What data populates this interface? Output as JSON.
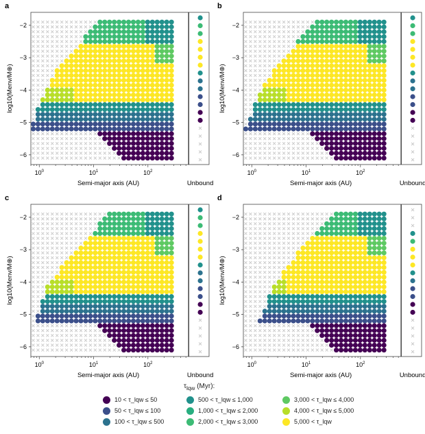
{
  "chart_data": [
    {
      "type": "scatter",
      "panel_label": "a",
      "xlabel": "Semi-major axis (AU)",
      "ylabel": "log10(Menv/M⊕)",
      "x_scale": "log",
      "xlim": [
        0.7,
        500
      ],
      "ylim": [
        -6.3,
        -1.6
      ],
      "x_ticks": [
        "10^0",
        "10^1",
        "10^2"
      ],
      "y_ticks": [
        "-2",
        "-3",
        "-4",
        "-5",
        "-6"
      ],
      "extra_x_label": "Unbound",
      "point_series": "bands",
      "upper_left_a": [
        12,
        5,
        2.0,
        1.2,
        0.8,
        0.6
      ],
      "unbound_colors": [
        "teal",
        "green",
        "green",
        "yellow",
        "yellow",
        "yellow",
        "yellow",
        "teal",
        "blue",
        "blue",
        "indigo",
        "indigo",
        "purple",
        "purple"
      ]
    },
    {
      "type": "scatter",
      "panel_label": "b",
      "xlabel": "Semi-major axis (AU)",
      "ylabel": "log10(Menv/M⊕)",
      "x_scale": "log",
      "xlim": [
        0.7,
        500
      ],
      "ylim": [
        -6.3,
        -1.6
      ],
      "x_ticks": [
        "10^0",
        "10^1",
        "10^2"
      ],
      "y_ticks": [
        "-2",
        "-3",
        "-4",
        "-5",
        "-6"
      ],
      "extra_x_label": "Unbound",
      "point_series": "bands",
      "upper_left_a": [
        14,
        6,
        2.5,
        1.3,
        0.9,
        0.6
      ],
      "unbound_colors": [
        "teal",
        "green",
        "green",
        "yellow",
        "yellow",
        "yellow",
        "yellow",
        "teal",
        "blue",
        "blue",
        "indigo",
        "indigo",
        "purple",
        "purple"
      ]
    },
    {
      "type": "scatter",
      "panel_label": "c",
      "xlabel": "Semi-major axis (AU)",
      "ylabel": "log10(Menv/M⊕)",
      "x_scale": "log",
      "xlim": [
        0.7,
        500
      ],
      "ylim": [
        -6.3,
        -1.6
      ],
      "x_ticks": [
        "10^0",
        "10^1",
        "10^2"
      ],
      "y_ticks": [
        "-2",
        "-3",
        "-4",
        "-5",
        "-6"
      ],
      "extra_x_label": "Unbound",
      "point_series": "bands",
      "upper_left_a": [
        18,
        8,
        3.0,
        1.4,
        1.0,
        0.7
      ],
      "unbound_colors": [
        "teal",
        "green",
        "green",
        "yellow",
        "yellow",
        "yellow",
        "yellow",
        "teal",
        "blue",
        "blue",
        "indigo",
        "indigo",
        "purple",
        "purple"
      ]
    },
    {
      "type": "scatter",
      "panel_label": "d",
      "xlabel": "Semi-major axis (AU)",
      "ylabel": "log10(Menv/M⊕)",
      "x_scale": "log",
      "xlim": [
        0.7,
        500
      ],
      "ylim": [
        -6.3,
        -1.6
      ],
      "x_ticks": [
        "10^0",
        "10^1",
        "10^2"
      ],
      "y_ticks": [
        "-2",
        "-3",
        "-4",
        "-5",
        "-6"
      ],
      "extra_x_label": "Unbound",
      "point_series": "bands",
      "upper_left_a": [
        30,
        12,
        5.0,
        2.5,
        1.6,
        1.0
      ],
      "unbound_colors": [
        "grey",
        "grey",
        "grey",
        "teal",
        "green",
        "yellow",
        "yellow",
        "yellow",
        "teal",
        "blue",
        "indigo",
        "indigo",
        "purple",
        "purple"
      ]
    }
  ],
  "legend": {
    "title": "τ_lqw (Myr):",
    "items": [
      {
        "key": "purple",
        "color": "#440154",
        "label": "10 < τ_lqw ≤ 50"
      },
      {
        "key": "indigo",
        "color": "#3b4f8a",
        "label": "50 < τ_lqw ≤ 100"
      },
      {
        "key": "blue",
        "color": "#2c728e",
        "label": "100 < τ_lqw ≤ 500"
      },
      {
        "key": "teal",
        "color": "#21918c",
        "label": "500 < τ_lqw ≤ 1,000"
      },
      {
        "key": "cyan",
        "color": "#28ae80",
        "label": "1,000 < τ_lqw ≤ 2,000"
      },
      {
        "key": "green",
        "color": "#3cbb75",
        "label": "2,000 < τ_lqw ≤ 3,000"
      },
      {
        "key": "lime",
        "color": "#5ec962",
        "label": "3,000 < τ_lqw ≤ 4,000"
      },
      {
        "key": "yellowgreen",
        "color": "#b8de29",
        "label": "4,000 < τ_lqw ≤ 5,000"
      },
      {
        "key": "yellow",
        "color": "#fde725",
        "label": "5,000 < τ_lqw"
      }
    ]
  },
  "colors": {
    "cross": "#c8c8c8",
    "axis": "#444444",
    "unbound_line": "#333333"
  }
}
